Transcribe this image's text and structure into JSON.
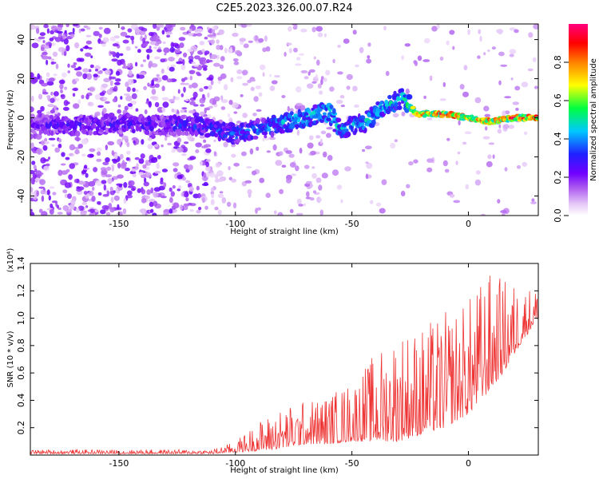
{
  "title": "C2E5.2023.326.00.07.R24",
  "chart_data": [
    {
      "type": "heatmap",
      "xlabel": "Height of straight line (km)",
      "ylabel": "Frequency (Hz)",
      "xlim": [
        -188,
        30
      ],
      "ylim": [
        -50,
        48
      ],
      "xticks": [
        -150,
        -100,
        -50,
        0
      ],
      "yticks": [
        -40,
        -20,
        0,
        20,
        40
      ],
      "colorbar": {
        "label": "Normalized spectral amplitude",
        "range": [
          0,
          1
        ],
        "ticks": [
          0.0,
          0.2,
          0.4,
          0.6,
          0.8
        ],
        "colors": [
          "#ffffff",
          "#e6c8f8",
          "#b060f0",
          "#7000ff",
          "#2020ff",
          "#00c8ff",
          "#00ff40",
          "#ffff00",
          "#ff8000",
          "#ff0000",
          "#ff0080"
        ]
      },
      "ridge": [
        {
          "x": -185,
          "y": -3,
          "amp": 0.25
        },
        {
          "x": -170,
          "y": -4,
          "amp": 0.3
        },
        {
          "x": -150,
          "y": -3,
          "amp": 0.3
        },
        {
          "x": -130,
          "y": -4,
          "amp": 0.3
        },
        {
          "x": -115,
          "y": -4,
          "amp": 0.35
        },
        {
          "x": -100,
          "y": -8,
          "amp": 0.4
        },
        {
          "x": -90,
          "y": -6,
          "amp": 0.4
        },
        {
          "x": -80,
          "y": -3,
          "amp": 0.45
        },
        {
          "x": -70,
          "y": 0,
          "amp": 0.5
        },
        {
          "x": -60,
          "y": 3,
          "amp": 0.55
        },
        {
          "x": -55,
          "y": -6,
          "amp": 0.45
        },
        {
          "x": -45,
          "y": -3,
          "amp": 0.5
        },
        {
          "x": -35,
          "y": 7,
          "amp": 0.5
        },
        {
          "x": -28,
          "y": 10,
          "amp": 0.5
        },
        {
          "x": -22,
          "y": 2,
          "amp": 0.85
        },
        {
          "x": -10,
          "y": 2,
          "amp": 0.9
        },
        {
          "x": 0,
          "y": 0,
          "amp": 0.85
        },
        {
          "x": 10,
          "y": -2,
          "amp": 0.85
        },
        {
          "x": 20,
          "y": 0,
          "amp": 0.9
        },
        {
          "x": 30,
          "y": 0,
          "amp": 0.9
        }
      ]
    },
    {
      "type": "line",
      "xlabel": "Height of straight line (km)",
      "ylabel": "SNR (10 * v/v)",
      "scale_label": "(x10⁴)",
      "xlim": [
        -188,
        30
      ],
      "ylim": [
        0,
        1.4
      ],
      "xticks": [
        -150,
        -100,
        -50,
        0
      ],
      "yticks": [
        0.2,
        0.4,
        0.6,
        0.8,
        1.0,
        1.2,
        1.4
      ],
      "series_color": "#ee3333",
      "envelope": [
        {
          "x": -188,
          "base": 0.01,
          "peak": 0.04
        },
        {
          "x": -110,
          "base": 0.01,
          "peak": 0.04
        },
        {
          "x": -100,
          "base": 0.02,
          "peak": 0.1
        },
        {
          "x": -90,
          "base": 0.03,
          "peak": 0.25
        },
        {
          "x": -80,
          "base": 0.05,
          "peak": 0.35
        },
        {
          "x": -70,
          "base": 0.08,
          "peak": 0.4
        },
        {
          "x": -60,
          "base": 0.08,
          "peak": 0.45
        },
        {
          "x": -50,
          "base": 0.1,
          "peak": 0.55
        },
        {
          "x": -40,
          "base": 0.1,
          "peak": 0.75
        },
        {
          "x": -30,
          "base": 0.1,
          "peak": 0.95
        },
        {
          "x": -20,
          "base": 0.15,
          "peak": 0.95
        },
        {
          "x": -10,
          "base": 0.2,
          "peak": 1.05
        },
        {
          "x": 0,
          "base": 0.3,
          "peak": 1.15
        },
        {
          "x": 8,
          "base": 0.45,
          "peak": 1.35
        },
        {
          "x": 15,
          "base": 0.6,
          "peak": 1.3
        },
        {
          "x": 22,
          "base": 0.8,
          "peak": 1.25
        },
        {
          "x": 30,
          "base": 1.0,
          "peak": 1.22
        }
      ]
    }
  ]
}
